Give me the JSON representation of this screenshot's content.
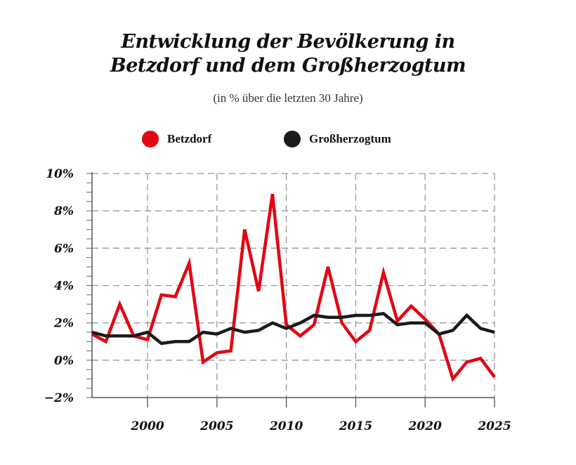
{
  "chart_data": {
    "type": "line",
    "title_line1": "Entwicklung der Bevölkerung in",
    "title_line2": "Betzdorf und dem Großherzogtum",
    "subtitle": "(in % über die letzten 30 Jahre)",
    "x": [
      1996,
      1997,
      1998,
      1999,
      2000,
      2001,
      2002,
      2003,
      2004,
      2005,
      2006,
      2007,
      2008,
      2009,
      2010,
      2011,
      2012,
      2013,
      2014,
      2015,
      2016,
      2017,
      2018,
      2019,
      2020,
      2021,
      2022,
      2023,
      2024,
      2025
    ],
    "series": [
      {
        "name": "Betzdorf",
        "color": "#e30613",
        "values": [
          1.4,
          1.0,
          3.0,
          1.3,
          1.1,
          3.5,
          3.4,
          5.2,
          -0.1,
          0.4,
          0.5,
          7.0,
          3.7,
          8.9,
          1.9,
          1.3,
          1.9,
          5.0,
          2.0,
          1.0,
          1.6,
          4.7,
          2.1,
          2.9,
          2.2,
          1.4,
          -1.0,
          -0.1,
          0.1,
          -0.9
        ]
      },
      {
        "name": "Großherzogtum",
        "color": "#1a1a1a",
        "values": [
          1.5,
          1.3,
          1.3,
          1.3,
          1.5,
          0.9,
          1.0,
          1.0,
          1.5,
          1.4,
          1.7,
          1.5,
          1.6,
          2.0,
          1.7,
          2.0,
          2.4,
          2.3,
          2.3,
          2.4,
          2.4,
          2.5,
          1.9,
          2.0,
          2.0,
          1.4,
          1.6,
          2.4,
          1.7,
          1.5
        ]
      }
    ],
    "xlim": [
      1996,
      2025
    ],
    "ylim": [
      -2,
      10
    ],
    "xticks": [
      2000,
      2005,
      2010,
      2015,
      2020,
      2025
    ],
    "yticks": [
      10,
      8,
      6,
      4,
      2,
      0,
      -2
    ],
    "ytick_labels": [
      "10%",
      "8%",
      "6%",
      "4%",
      "2%",
      "0%",
      "−2%"
    ],
    "grid": true,
    "legend_position": "top"
  }
}
